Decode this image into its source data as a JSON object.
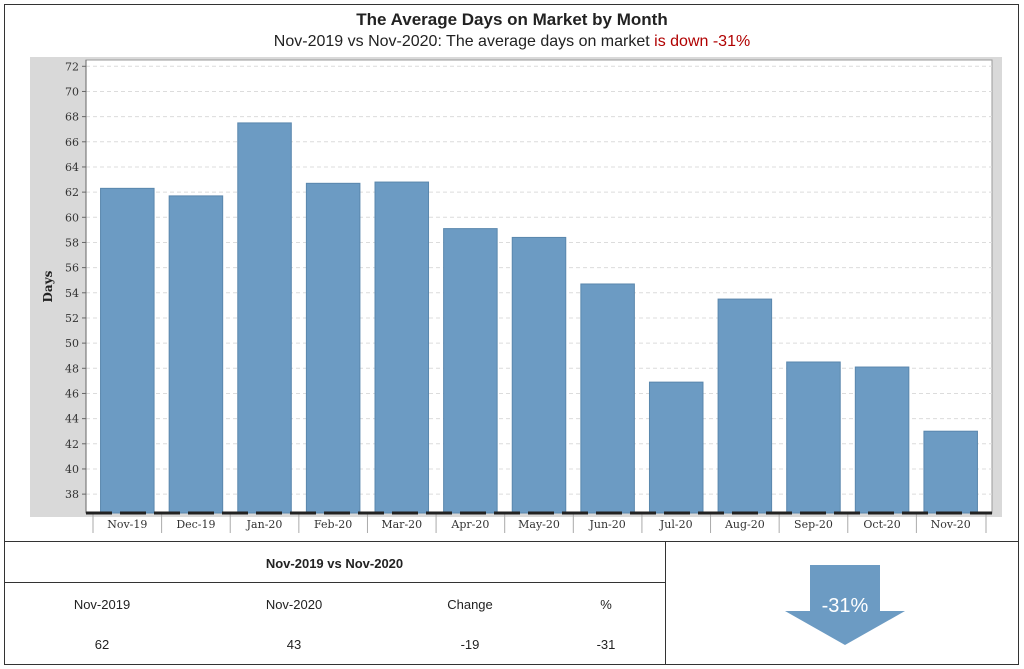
{
  "chart_data": {
    "type": "bar",
    "title": "The Average Days on Market by Month",
    "subtitle_prefix": "Nov-2019 vs Nov-2020: The average days on market ",
    "subtitle_highlight": "is down -31%",
    "ylabel": "Days",
    "xlabel": "",
    "ylim": [
      36.5,
      72.5
    ],
    "yticks": [
      38,
      40,
      42,
      44,
      46,
      48,
      50,
      52,
      54,
      56,
      58,
      60,
      62,
      64,
      66,
      68,
      70,
      72
    ],
    "grid": true,
    "legend": "none",
    "bar_color": "#6c9bc3",
    "highlight_color": "#b00000",
    "categories": [
      "Nov-19",
      "Dec-19",
      "Jan-20",
      "Feb-20",
      "Mar-20",
      "Apr-20",
      "May-20",
      "Jun-20",
      "Jul-20",
      "Aug-20",
      "Sep-20",
      "Oct-20",
      "Nov-20"
    ],
    "values": [
      62.3,
      61.7,
      67.5,
      62.7,
      62.8,
      59.1,
      58.4,
      54.7,
      46.9,
      53.5,
      48.5,
      48.1,
      43.0
    ]
  },
  "comparison": {
    "header": "Nov-2019 vs Nov-2020",
    "columns": [
      "Nov-2019",
      "Nov-2020",
      "Change",
      "%"
    ],
    "values": [
      "62",
      "43",
      "-19",
      "-31"
    ]
  },
  "indicator": {
    "label": "-31%",
    "direction": "down",
    "color": "#6c9bc3"
  }
}
